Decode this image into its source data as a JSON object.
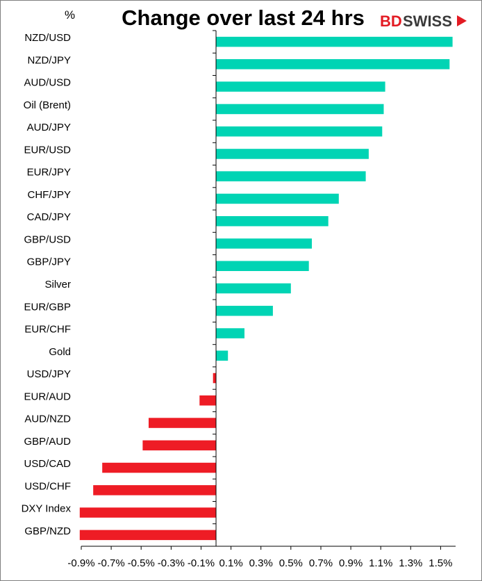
{
  "chart_data": {
    "type": "bar",
    "orientation": "horizontal",
    "title": "Change over last 24 hrs",
    "unit_label": "%",
    "logo": {
      "part1": "BD",
      "part2": "SWISS"
    },
    "categories": [
      "NZD/USD",
      "NZD/JPY",
      "AUD/USD",
      "Oil (Brent)",
      "AUD/JPY",
      "EUR/USD",
      "EUR/JPY",
      "CHF/JPY",
      "CAD/JPY",
      "GBP/USD",
      "GBP/JPY",
      "Silver",
      "EUR/GBP",
      "EUR/CHF",
      "Gold",
      "USD/JPY",
      "EUR/AUD",
      "AUD/NZD",
      "GBP/AUD",
      "USD/CAD",
      "USD/CHF",
      "DXY Index",
      "GBP/NZD"
    ],
    "values": [
      1.58,
      1.56,
      1.13,
      1.12,
      1.11,
      1.02,
      1.0,
      0.82,
      0.75,
      0.64,
      0.62,
      0.5,
      0.38,
      0.19,
      0.08,
      -0.02,
      -0.11,
      -0.45,
      -0.49,
      -0.76,
      -0.82,
      -0.91,
      -0.91
    ],
    "xlim": [
      -0.9,
      1.6
    ],
    "x_ticks": [
      "-0.9%",
      "-0.7%",
      "-0.5%",
      "-0.3%",
      "-0.1%",
      "0.1%",
      "0.3%",
      "0.5%",
      "0.7%",
      "0.9%",
      "1.1%",
      "1.3%",
      "1.5%"
    ],
    "colors": {
      "positive": "#00d4b4",
      "negative": "#ee1c25",
      "axis": "#000000"
    }
  }
}
